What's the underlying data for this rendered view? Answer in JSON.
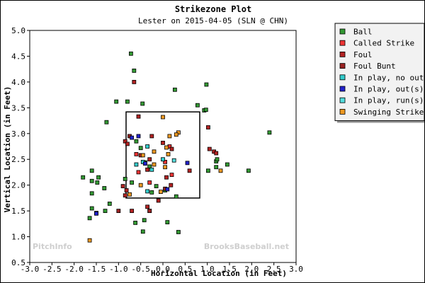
{
  "chart_data": {
    "type": "scatter",
    "title": "Strikezone Plot",
    "subtitle": "Lester on 2015-04-05 (SLN @ CHN)",
    "xlabel": "Horizontal Location (in Feet)",
    "ylabel": "Vertical Location (in Feet)",
    "xlim": [
      -3.0,
      3.0
    ],
    "ylim": [
      0.5,
      5.0
    ],
    "x_ticks": [
      "-3.0",
      "-2.5",
      "-2.0",
      "-1.5",
      "-1.0",
      "-0.5",
      "0.0",
      "0.5",
      "1.0",
      "1.5",
      "2.0",
      "2.5",
      "3.0"
    ],
    "y_ticks": [
      "0.5",
      "1.0",
      "1.5",
      "2.0",
      "2.5",
      "3.0",
      "3.5",
      "4.0",
      "4.5",
      "5.0"
    ],
    "grid": false,
    "legend_position": "top-right",
    "strike_zone": {
      "x": [
        -0.83,
        0.83
      ],
      "y": [
        1.75,
        3.42
      ]
    },
    "watermarks": {
      "left": "PitchInfo",
      "right": "BrooksBaseball.net"
    },
    "series": [
      {
        "name": "Ball",
        "color": "#339933",
        "points": [
          [
            -0.72,
            4.55
          ],
          [
            -0.65,
            4.22
          ],
          [
            -1.05,
            3.62
          ],
          [
            -0.8,
            3.62
          ],
          [
            -0.46,
            3.58
          ],
          [
            0.27,
            3.85
          ],
          [
            0.93,
            3.45
          ],
          [
            0.97,
            3.46
          ],
          [
            0.98,
            3.95
          ],
          [
            0.78,
            3.55
          ],
          [
            -1.27,
            3.22
          ],
          [
            2.4,
            3.02
          ],
          [
            -1.6,
            2.28
          ],
          [
            -1.8,
            2.15
          ],
          [
            -1.45,
            2.15
          ],
          [
            -1.48,
            2.05
          ],
          [
            -1.6,
            2.08
          ],
          [
            -1.32,
            1.94
          ],
          [
            -1.6,
            1.84
          ],
          [
            -1.2,
            1.64
          ],
          [
            -1.6,
            1.55
          ],
          [
            -1.3,
            1.5
          ],
          [
            -1.65,
            1.36
          ],
          [
            -0.62,
            1.27
          ],
          [
            -0.42,
            1.32
          ],
          [
            -0.45,
            1.1
          ],
          [
            0.35,
            1.09
          ],
          [
            0.1,
            1.28
          ],
          [
            1.2,
            2.46
          ],
          [
            1.2,
            2.35
          ],
          [
            1.22,
            2.5
          ],
          [
            1.45,
            2.4
          ],
          [
            1.93,
            2.28
          ],
          [
            1.02,
            2.28
          ],
          [
            -0.7,
            2.05
          ],
          [
            -0.6,
            2.85
          ],
          [
            -0.5,
            2.72
          ],
          [
            -0.4,
            2.44
          ],
          [
            -0.3,
            2.36
          ],
          [
            -0.15,
            1.98
          ],
          [
            0.05,
            1.9
          ],
          [
            -0.85,
            2.12
          ],
          [
            -0.25,
            1.86
          ],
          [
            0.3,
            1.78
          ]
        ]
      },
      {
        "name": "Called Strike",
        "color": "#ee3333",
        "points": [
          [
            -0.55,
            2.25
          ],
          [
            0.05,
            2.45
          ],
          [
            0.2,
            2.2
          ],
          [
            0.15,
            2.75
          ],
          [
            -0.3,
            2.05
          ],
          [
            -0.6,
            2.6
          ]
        ]
      },
      {
        "name": "Foul",
        "color": "#b22222",
        "points": [
          [
            -0.65,
            4.0
          ],
          [
            -0.85,
            2.85
          ],
          [
            -0.25,
            2.95
          ],
          [
            -0.5,
            2.58
          ],
          [
            -0.3,
            2.5
          ],
          [
            0.0,
            2.82
          ],
          [
            0.2,
            2.7
          ],
          [
            -0.35,
            2.3
          ],
          [
            0.08,
            2.15
          ],
          [
            0.6,
            2.28
          ],
          [
            1.05,
            2.7
          ],
          [
            1.15,
            2.65
          ],
          [
            1.2,
            2.62
          ],
          [
            1.02,
            3.12
          ],
          [
            -0.55,
            3.33
          ],
          [
            -0.8,
            2.8
          ],
          [
            -0.9,
            1.98
          ],
          [
            -0.85,
            1.8
          ],
          [
            -0.7,
            1.5
          ],
          [
            -0.1,
            1.7
          ],
          [
            -0.35,
            1.58
          ],
          [
            -0.3,
            1.5
          ],
          [
            -0.82,
            1.9
          ],
          [
            0.18,
            2.0
          ]
        ]
      },
      {
        "name": "Foul Bunt",
        "color": "#992222",
        "points": [
          [
            -0.75,
            2.95
          ],
          [
            0.05,
            1.93
          ],
          [
            -0.3,
            1.5
          ],
          [
            -1.0,
            1.5
          ],
          [
            -1.5,
            1.46
          ]
        ]
      },
      {
        "name": "In play, no out",
        "color": "#33cccc",
        "points": [
          [
            -0.35,
            2.75
          ],
          [
            0.0,
            2.5
          ],
          [
            -0.45,
            2.45
          ],
          [
            -0.35,
            1.88
          ],
          [
            -0.6,
            2.4
          ],
          [
            -0.25,
            2.3
          ]
        ]
      },
      {
        "name": "In play, out(s)",
        "color": "#2222cc",
        "points": [
          [
            -0.55,
            2.95
          ],
          [
            -0.7,
            2.92
          ],
          [
            -0.4,
            2.42
          ],
          [
            0.55,
            2.43
          ],
          [
            0.1,
            1.92
          ],
          [
            -1.5,
            1.45
          ]
        ]
      },
      {
        "name": "In play, run(s)",
        "color": "#55dddd",
        "points": [
          [
            0.25,
            2.48
          ]
        ]
      },
      {
        "name": "Swinging Strike",
        "color": "#ee9922",
        "points": [
          [
            0.0,
            3.32
          ],
          [
            -0.45,
            2.58
          ],
          [
            -0.2,
            2.65
          ],
          [
            0.12,
            2.6
          ],
          [
            0.35,
            3.02
          ],
          [
            -0.05,
            1.87
          ],
          [
            -1.65,
            0.93
          ],
          [
            1.3,
            2.28
          ],
          [
            0.3,
            2.98
          ],
          [
            0.08,
            2.73
          ],
          [
            -0.75,
            1.82
          ],
          [
            -0.2,
            2.4
          ],
          [
            -0.5,
            2.0
          ],
          [
            0.15,
            2.95
          ],
          [
            0.05,
            2.35
          ]
        ]
      }
    ]
  }
}
